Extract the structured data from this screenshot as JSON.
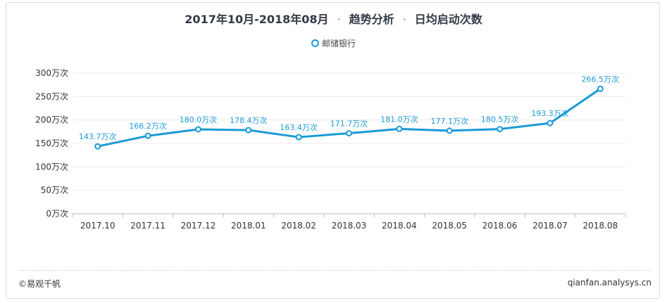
{
  "header": {
    "period": "2017年10月-2018年08月",
    "analysis": "趋势分析",
    "metric": "日均启动次数",
    "separator": "•"
  },
  "footer": {
    "left": "©易观千帆",
    "right": "qianfan.analysys.cn"
  },
  "colors": {
    "series": "#1a9ad6",
    "label": "#1a9ad6",
    "grid": "#ececec",
    "axis": "#b8b8b8"
  },
  "chart_data": {
    "type": "line",
    "title": "2017年10月-2018年08月 • 趋势分析 • 日均启动次数",
    "categories": [
      "2017.10",
      "2017.11",
      "2017.12",
      "2018.01",
      "2018.02",
      "2018.03",
      "2018.04",
      "2018.05",
      "2018.06",
      "2018.07",
      "2018.08"
    ],
    "series": [
      {
        "name": "邮储银行",
        "values": [
          143.7,
          166.2,
          180.0,
          178.4,
          163.4,
          171.7,
          181.0,
          177.1,
          180.5,
          193.3,
          266.5
        ],
        "labels": [
          "143.7万次",
          "166.2万次",
          "180.0万次",
          "178.4万次",
          "163.4万次",
          "171.7万次",
          "181.0万次",
          "177.1万次",
          "180.5万次",
          "193.3万次",
          "266.5万次"
        ]
      }
    ],
    "y_ticks": [
      "0万次",
      "50万次",
      "100万次",
      "150万次",
      "200万次",
      "250万次",
      "300万次"
    ],
    "ylim": [
      0,
      300
    ],
    "legend_position": "top-center",
    "grid": true
  }
}
